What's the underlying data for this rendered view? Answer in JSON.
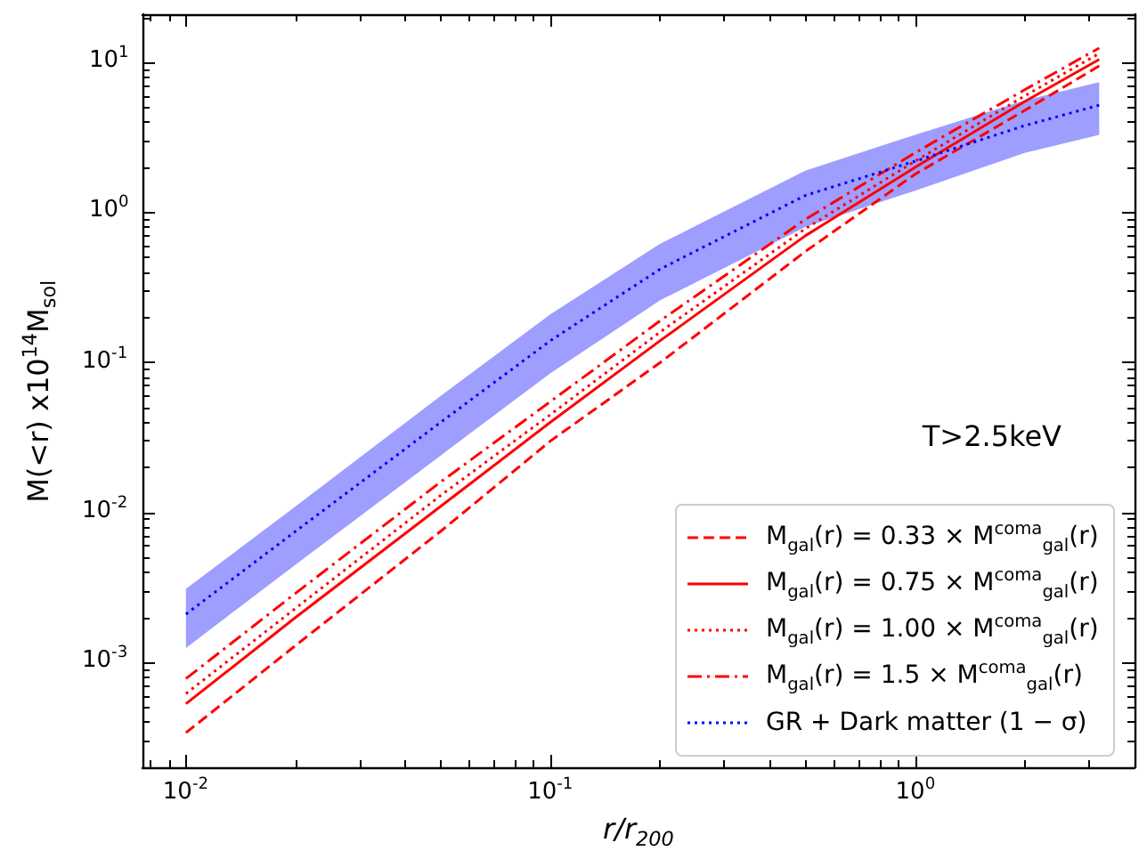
{
  "chart_data": {
    "type": "line",
    "xlabel": "r/r$_{200}$",
    "ylabel": "M(<r) x10$^{14}$M$_{sol}$",
    "annotations": [
      "T>2.5keV"
    ],
    "log": "xy",
    "xlim": [
      0.0076,
      4.0
    ],
    "ylim": [
      0.0002,
      21
    ],
    "xticks": [
      {
        "value": 0.01,
        "label": "10$^{-2}$"
      },
      {
        "value": 0.1,
        "label": "10$^{-1}$"
      },
      {
        "value": 1,
        "label": "10$^{0}$"
      }
    ],
    "yticks": [
      {
        "value": 0.001,
        "label": "10$^{-3}$"
      },
      {
        "value": 0.01,
        "label": "10$^{-2}$"
      },
      {
        "value": 0.1,
        "label": "10$^{-1}$"
      },
      {
        "value": 1,
        "label": "10$^{0}$"
      },
      {
        "value": 10,
        "label": "10$^{1}$"
      }
    ],
    "x": [
      0.01,
      0.02,
      0.05,
      0.1,
      0.2,
      0.5,
      1,
      2,
      3.2
    ],
    "grid": false,
    "legend": "bottom right",
    "marker": "none",
    "series": [
      {
        "name": "M$_{gal}$(r) = 0.33 × M$^{coma}$$_{gal}$(r)",
        "color": "#ff0000",
        "line_style": "dashed",
        "values": [
          0.00034,
          0.0013,
          0.0075,
          0.03,
          0.1,
          0.55,
          1.8,
          4.8,
          9.5
        ]
      },
      {
        "name": "M$_{gal}$(r) = 0.75 × M$^{coma}$$_{gal}$(r)",
        "color": "#ff0000",
        "line_style": "solid",
        "values": [
          0.00053,
          0.002,
          0.011,
          0.04,
          0.14,
          0.7,
          2.0,
          5.5,
          10.5
        ]
      },
      {
        "name": "M$_{gal}$(r) = 1.00 × M$^{coma}$$_{gal}$(r)",
        "color": "#ff0000",
        "line_style": "dotted",
        "values": [
          0.00062,
          0.0023,
          0.013,
          0.045,
          0.16,
          0.78,
          2.2,
          6.0,
          11.5
        ]
      },
      {
        "name": "M$_{gal}$(r) = 1.5 × M$^{coma}$$_{gal}$(r)",
        "color": "#ff0000",
        "line_style": "dashdot",
        "values": [
          0.00078,
          0.0029,
          0.016,
          0.055,
          0.19,
          0.9,
          2.5,
          6.6,
          12.5
        ]
      },
      {
        "name": "GR + Dark matter (1 − σ)",
        "color": "#0000ff",
        "line_style": "dotted",
        "values": [
          0.0021,
          0.0075,
          0.04,
          0.14,
          0.42,
          1.3,
          2.2,
          3.8,
          5.2
        ],
        "lower": [
          0.00125,
          0.0045,
          0.024,
          0.085,
          0.26,
          0.8,
          1.4,
          2.5,
          3.3
        ],
        "upper": [
          0.0031,
          0.011,
          0.06,
          0.21,
          0.62,
          1.9,
          3.3,
          5.6,
          7.4
        ]
      }
    ]
  }
}
